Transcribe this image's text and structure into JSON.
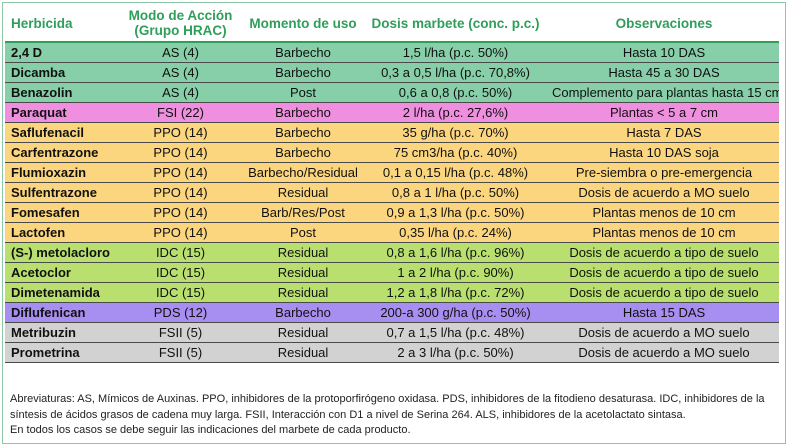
{
  "table": {
    "headers": [
      "Herbicida",
      "Modo de Acción (Grupo HRAC)",
      "Momento de uso",
      "Dosis marbete (conc. p.c.)",
      "Observaciones"
    ],
    "header_color": "#2f9e5a",
    "group_colors": {
      "AS": "#86cfa8",
      "FSI": "#f08ee0",
      "PPO": "#fcd67e",
      "IDC": "#b9e06f",
      "PDS": "#a78ff2",
      "FSII": "#d2d2d2"
    },
    "rows": [
      {
        "herbicida": "2,4 D",
        "modo": "AS (4)",
        "momento": "Barbecho",
        "dosis": "1,5 l/ha (p.c. 50%)",
        "obs": "Hasta 10 DAS",
        "group": "AS"
      },
      {
        "herbicida": "Dicamba",
        "modo": "AS (4)",
        "momento": "Barbecho",
        "dosis": "0,3 a 0,5 l/ha (p.c. 70,8%)",
        "obs": "Hasta 45 a 30 DAS",
        "group": "AS"
      },
      {
        "herbicida": "Benazolin",
        "modo": "AS (4)",
        "momento": "Post",
        "dosis": "0,6 a 0,8 (p.c. 50%)",
        "obs": "Complemento para plantas hasta 15 cm",
        "group": "AS"
      },
      {
        "herbicida": "Paraquat",
        "modo": "FSI (22)",
        "momento": "Barbecho",
        "dosis": "2 l/ha (p.c. 27,6%)",
        "obs": "Plantas < 5 a 7 cm",
        "group": "FSI"
      },
      {
        "herbicida": "Saflufenacil",
        "modo": "PPO (14)",
        "momento": "Barbecho",
        "dosis": "35 g/ha (p.c. 70%)",
        "obs": "Hasta 7 DAS",
        "group": "PPO"
      },
      {
        "herbicida": "Carfentrazone",
        "modo": "PPO (14)",
        "momento": "Barbecho",
        "dosis": "75 cm3/ha (p.c. 40%)",
        "obs": "Hasta 10 DAS soja",
        "group": "PPO"
      },
      {
        "herbicida": "Flumioxazin",
        "modo": "PPO (14)",
        "momento": "Barbecho/Residual",
        "dosis": "0,1 a 0,15 l/ha (p.c. 48%)",
        "obs": "Pre-siembra o pre-emergencia",
        "group": "PPO"
      },
      {
        "herbicida": "Sulfentrazone",
        "modo": "PPO (14)",
        "momento": "Residual",
        "dosis": "0,8 a 1 l/ha (p.c. 50%)",
        "obs": "Dosis de acuerdo a MO suelo",
        "group": "PPO"
      },
      {
        "herbicida": "Fomesafen",
        "modo": "PPO (14)",
        "momento": "Barb/Res/Post",
        "dosis": "0,9 a 1,3 l/ha (p.c. 50%)",
        "obs": "Plantas menos de 10 cm",
        "group": "PPO"
      },
      {
        "herbicida": "Lactofen",
        "modo": "PPO (14)",
        "momento": "Post",
        "dosis": "0,35 l/ha (p.c. 24%)",
        "obs": "Plantas menos de 10 cm",
        "group": "PPO"
      },
      {
        "herbicida": "(S-) metolacloro",
        "modo": "IDC (15)",
        "momento": "Residual",
        "dosis": "0,8 a 1,6 l/ha (p.c. 96%)",
        "obs": "Dosis de acuerdo a tipo de suelo",
        "group": "IDC"
      },
      {
        "herbicida": "Acetoclor",
        "modo": "IDC (15)",
        "momento": "Residual",
        "dosis": "1 a 2 l/ha (p.c. 90%)",
        "obs": "Dosis de acuerdo a tipo de suelo",
        "group": "IDC"
      },
      {
        "herbicida": "Dimetenamida",
        "modo": "IDC (15)",
        "momento": "Residual",
        "dosis": "1,2 a 1,8 l/ha (p.c. 72%)",
        "obs": "Dosis de acuerdo a tipo de suelo",
        "group": "IDC"
      },
      {
        "herbicida": "Diflufenican",
        "modo": "PDS (12)",
        "momento": "Barbecho",
        "dosis": "200-a 300 g/ha (p.c. 50%)",
        "obs": "Hasta 15 DAS",
        "group": "PDS"
      },
      {
        "herbicida": "Metribuzin",
        "modo": "FSII (5)",
        "momento": "Residual",
        "dosis": "0,7 a 1,5 l/ha (p.c. 48%)",
        "obs": "Dosis de acuerdo a MO suelo",
        "group": "FSII"
      },
      {
        "herbicida": "Prometrina",
        "modo": "FSII (5)",
        "momento": "Residual",
        "dosis": "2 a 3 l/ha (p.c. 50%)",
        "obs": "Dosis de acuerdo a MO suelo",
        "group": "FSII"
      }
    ]
  },
  "notes": {
    "abbreviations": "Abreviaturas: AS, Mímicos de Auxinas. PPO, inhibidores de la protoporfirógeno oxidasa. PDS, inhibidores de la fitodieno desaturasa. IDC, inhibidores de la síntesis de ácidos grasos de cadena muy larga. FSII, Interacción con D1 a nivel de Serina 264. ALS, inhibidores de la acetolactato sintasa.",
    "final": "En todos los casos se debe seguir las indicaciones del marbete de cada producto."
  }
}
